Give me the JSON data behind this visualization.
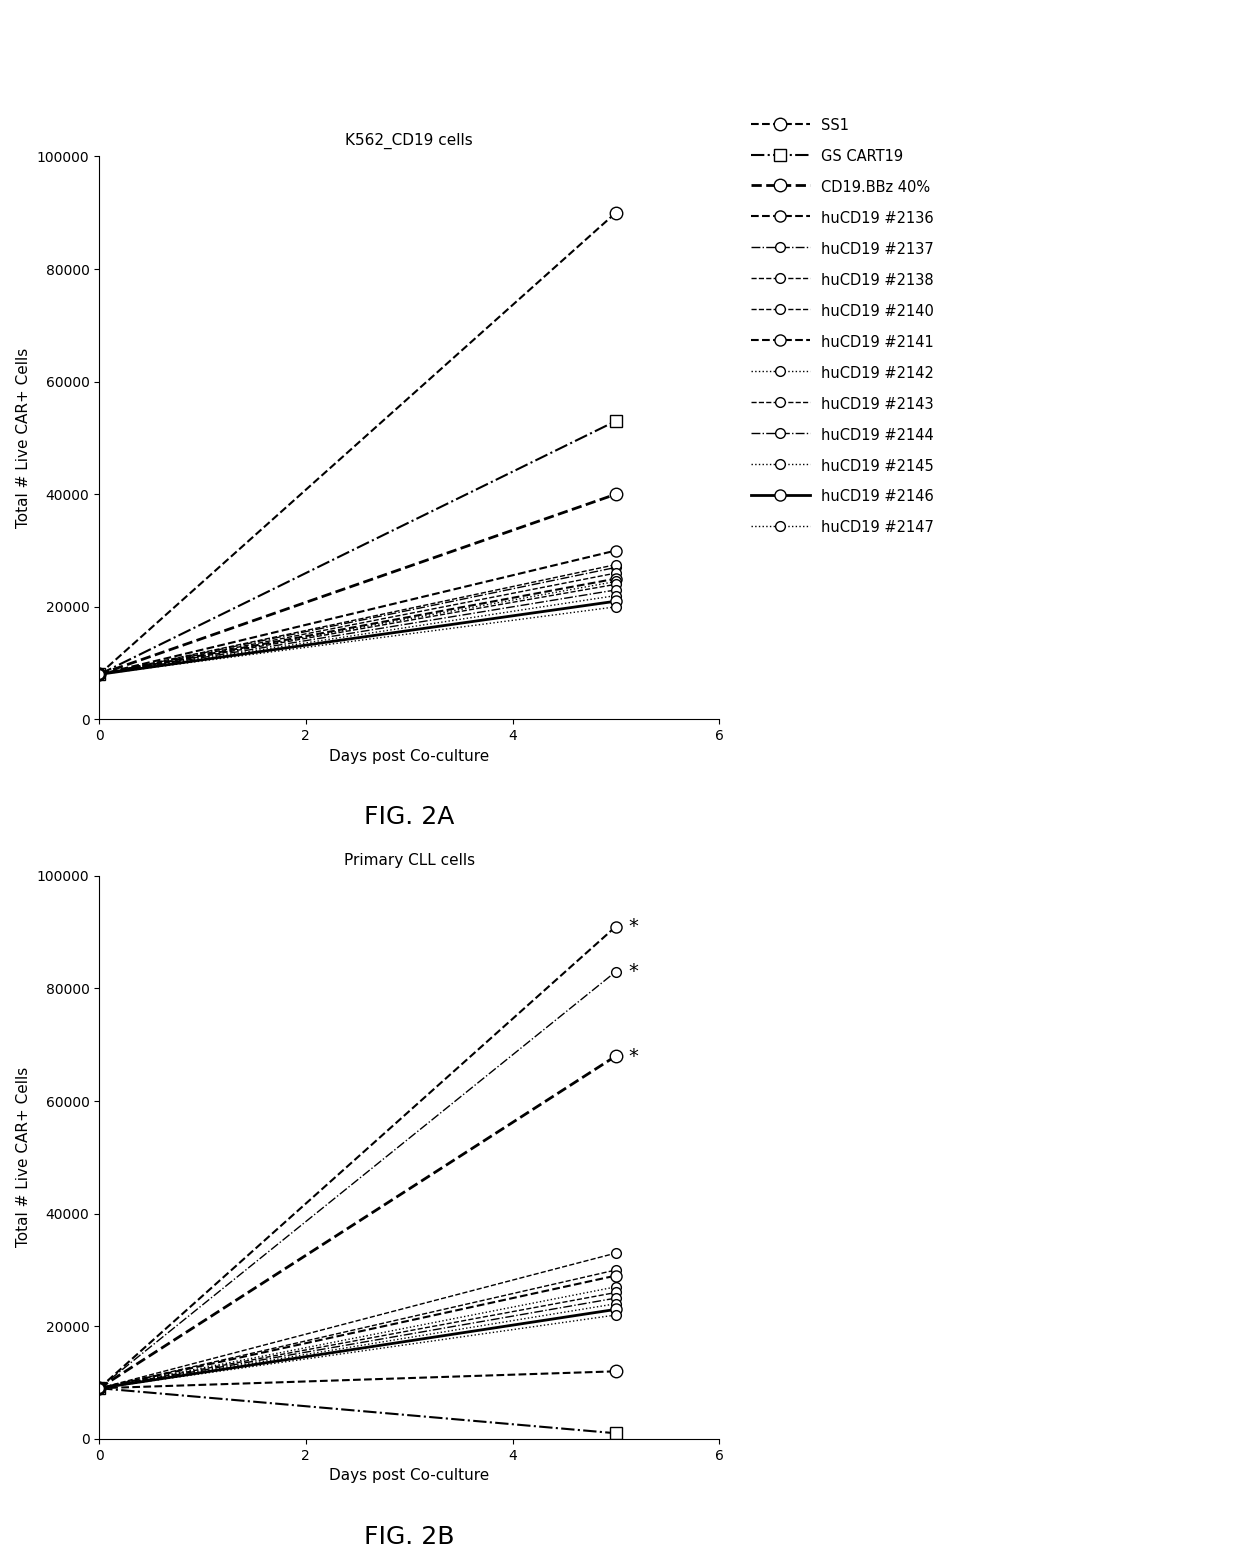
{
  "fig2a_title": "K562_CD19 cells",
  "fig2b_title": "Primary CLL cells",
  "xlabel": "Days post Co-culture",
  "ylabel": "Total # Live CAR+ Cells",
  "fig2a_label": "FIG. 2A",
  "fig2b_label": "FIG. 2B",
  "xlim": [
    0,
    6
  ],
  "ylim_a": [
    0,
    100000
  ],
  "ylim_b": [
    0,
    100000
  ],
  "x_ticks": [
    0,
    2,
    4,
    6
  ],
  "y_ticks": [
    0,
    20000,
    40000,
    60000,
    80000,
    100000
  ],
  "series": [
    {
      "name": "SS1",
      "marker": "o",
      "linestyle": "--",
      "linewidth": 1.5,
      "markersize": 9,
      "fig2a_y0": 8000,
      "fig2a_y1": 90000,
      "fig2b_y0": 9000,
      "fig2b_y1": 12000
    },
    {
      "name": "GS CART19",
      "marker": "s",
      "linestyle": "-.",
      "linewidth": 1.5,
      "markersize": 9,
      "fig2a_y0": 8000,
      "fig2a_y1": 53000,
      "fig2b_y0": 9000,
      "fig2b_y1": 1000
    },
    {
      "name": "CD19.BBz 40%",
      "marker": "o",
      "linestyle": "--",
      "linewidth": 2.0,
      "markersize": 9,
      "fig2a_y0": 8000,
      "fig2a_y1": 40000,
      "fig2b_y0": 9000,
      "fig2b_y1": 68000
    },
    {
      "name": "huCD19 #2136",
      "marker": "o",
      "linestyle": "--",
      "linewidth": 1.5,
      "markersize": 8,
      "fig2a_y0": 8000,
      "fig2a_y1": 30000,
      "fig2b_y0": 9000,
      "fig2b_y1": 91000
    },
    {
      "name": "huCD19 #2137",
      "marker": "o",
      "linestyle": "-.",
      "linewidth": 1.0,
      "markersize": 7,
      "fig2a_y0": 8000,
      "fig2a_y1": 27000,
      "fig2b_y0": 9000,
      "fig2b_y1": 83000
    },
    {
      "name": "huCD19 #2138",
      "marker": "o",
      "linestyle": "--",
      "linewidth": 1.0,
      "markersize": 7,
      "fig2a_y0": 8000,
      "fig2a_y1": 27500,
      "fig2b_y0": 9000,
      "fig2b_y1": 33000
    },
    {
      "name": "huCD19 #2140",
      "marker": "o",
      "linestyle": "--",
      "linewidth": 1.0,
      "markersize": 7,
      "fig2a_y0": 8000,
      "fig2a_y1": 26000,
      "fig2b_y0": 9000,
      "fig2b_y1": 30000
    },
    {
      "name": "huCD19 #2141",
      "marker": "o",
      "linestyle": "--",
      "linewidth": 1.5,
      "markersize": 8,
      "fig2a_y0": 8000,
      "fig2a_y1": 25000,
      "fig2b_y0": 9000,
      "fig2b_y1": 29000
    },
    {
      "name": "huCD19 #2142",
      "marker": "o",
      "linestyle": ":",
      "linewidth": 1.0,
      "markersize": 7,
      "fig2a_y0": 8000,
      "fig2a_y1": 24500,
      "fig2b_y0": 9000,
      "fig2b_y1": 27000
    },
    {
      "name": "huCD19 #2143",
      "marker": "o",
      "linestyle": "--",
      "linewidth": 1.0,
      "markersize": 7,
      "fig2a_y0": 8000,
      "fig2a_y1": 24000,
      "fig2b_y0": 9000,
      "fig2b_y1": 26000
    },
    {
      "name": "huCD19 #2144",
      "marker": "o",
      "linestyle": "-.",
      "linewidth": 1.0,
      "markersize": 7,
      "fig2a_y0": 8000,
      "fig2a_y1": 23000,
      "fig2b_y0": 9000,
      "fig2b_y1": 25000
    },
    {
      "name": "huCD19 #2145",
      "marker": "o",
      "linestyle": ":",
      "linewidth": 1.0,
      "markersize": 7,
      "fig2a_y0": 8000,
      "fig2a_y1": 22000,
      "fig2b_y0": 9000,
      "fig2b_y1": 24000
    },
    {
      "name": "huCD19 #2146",
      "marker": "o",
      "linestyle": "-",
      "linewidth": 2.0,
      "markersize": 8,
      "fig2a_y0": 8000,
      "fig2a_y1": 21000,
      "fig2b_y0": 9000,
      "fig2b_y1": 23000
    },
    {
      "name": "huCD19 #2147",
      "marker": "o",
      "linestyle": ":",
      "linewidth": 1.0,
      "markersize": 7,
      "fig2a_y0": 8000,
      "fig2a_y1": 20000,
      "fig2b_y0": 9000,
      "fig2b_y1": 22000
    }
  ],
  "asterisk_series_b": [
    "huCD19 #2136",
    "huCD19 #2137",
    "CD19.BBz 40%"
  ],
  "x_data": [
    0,
    5
  ],
  "background_color": "#ffffff",
  "font_size": 11
}
